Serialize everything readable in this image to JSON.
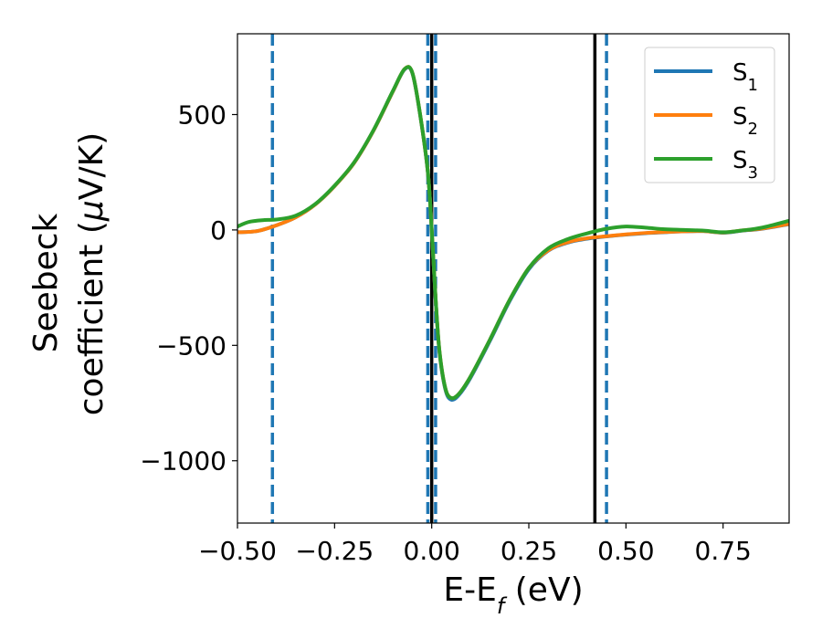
{
  "chart_data": {
    "type": "line",
    "title": "",
    "xlabel": "E-E_f (eV)",
    "ylabel": "Seebeck coefficient (μV/K)",
    "xlabel_parts": {
      "main": "E-E",
      "sub": "f",
      "unit": " (eV)"
    },
    "ylabel_parts": {
      "line1": "Seebeck",
      "line2_prefix": "coefficient  (",
      "mu": "μ",
      "line2_suffix": "V/K)"
    },
    "xlim": [
      -0.5,
      0.92
    ],
    "ylim": [
      -1270,
      850
    ],
    "xticks": [
      -0.5,
      -0.25,
      0.0,
      0.25,
      0.5,
      0.75
    ],
    "xtick_labels": [
      "−0.50",
      "−0.25",
      "0.00",
      "0.25",
      "0.50",
      "0.75"
    ],
    "yticks": [
      500,
      0,
      -500,
      -1000
    ],
    "ytick_labels": [
      "500",
      "0",
      "−500",
      "−1000"
    ],
    "grid": false,
    "legend_position": "upper-right",
    "series": [
      {
        "name": "S1",
        "label_main": "S",
        "label_sub": "1",
        "color": "#1f77b4",
        "points": [
          [
            -0.5,
            -10
          ],
          [
            -0.45,
            -5
          ],
          [
            -0.4,
            20
          ],
          [
            -0.35,
            55
          ],
          [
            -0.3,
            110
          ],
          [
            -0.25,
            190
          ],
          [
            -0.2,
            290
          ],
          [
            -0.15,
            430
          ],
          [
            -0.1,
            600
          ],
          [
            -0.07,
            695
          ],
          [
            -0.05,
            680
          ],
          [
            -0.03,
            500
          ],
          [
            -0.01,
            250
          ],
          [
            0.0,
            0
          ],
          [
            0.01,
            -300
          ],
          [
            0.02,
            -530
          ],
          [
            0.035,
            -690
          ],
          [
            0.05,
            -735
          ],
          [
            0.07,
            -715
          ],
          [
            0.1,
            -640
          ],
          [
            0.15,
            -480
          ],
          [
            0.2,
            -310
          ],
          [
            0.25,
            -170
          ],
          [
            0.3,
            -90
          ],
          [
            0.35,
            -55
          ],
          [
            0.4,
            -38
          ],
          [
            0.45,
            -28
          ],
          [
            0.5,
            -20
          ],
          [
            0.55,
            -14
          ],
          [
            0.6,
            -10
          ],
          [
            0.65,
            -6
          ],
          [
            0.7,
            -5
          ],
          [
            0.75,
            -12
          ],
          [
            0.8,
            -3
          ],
          [
            0.85,
            5
          ],
          [
            0.92,
            25
          ]
        ]
      },
      {
        "name": "S2",
        "label_main": "S",
        "label_sub": "2",
        "color": "#ff7f0e",
        "points": [
          [
            -0.5,
            -10
          ],
          [
            -0.45,
            -5
          ],
          [
            -0.4,
            20
          ],
          [
            -0.35,
            55
          ],
          [
            -0.3,
            110
          ],
          [
            -0.25,
            190
          ],
          [
            -0.2,
            290
          ],
          [
            -0.15,
            430
          ],
          [
            -0.1,
            600
          ],
          [
            -0.07,
            697
          ],
          [
            -0.05,
            682
          ],
          [
            -0.03,
            502
          ],
          [
            -0.01,
            252
          ],
          [
            0.0,
            2
          ],
          [
            0.01,
            -295
          ],
          [
            0.02,
            -525
          ],
          [
            0.035,
            -685
          ],
          [
            0.05,
            -728
          ],
          [
            0.07,
            -710
          ],
          [
            0.1,
            -635
          ],
          [
            0.15,
            -475
          ],
          [
            0.2,
            -305
          ],
          [
            0.25,
            -165
          ],
          [
            0.3,
            -88
          ],
          [
            0.35,
            -53
          ],
          [
            0.4,
            -36
          ],
          [
            0.45,
            -27
          ],
          [
            0.5,
            -19
          ],
          [
            0.55,
            -13
          ],
          [
            0.6,
            -9
          ],
          [
            0.65,
            -6
          ],
          [
            0.7,
            -5
          ],
          [
            0.75,
            -11
          ],
          [
            0.8,
            -2
          ],
          [
            0.85,
            6
          ],
          [
            0.92,
            26
          ]
        ]
      },
      {
        "name": "S3",
        "label_main": "S",
        "label_sub": "3",
        "color": "#2ca02c",
        "points": [
          [
            -0.5,
            15
          ],
          [
            -0.47,
            35
          ],
          [
            -0.43,
            43
          ],
          [
            -0.4,
            45
          ],
          [
            -0.35,
            62
          ],
          [
            -0.3,
            112
          ],
          [
            -0.25,
            192
          ],
          [
            -0.2,
            292
          ],
          [
            -0.15,
            432
          ],
          [
            -0.1,
            602
          ],
          [
            -0.07,
            697
          ],
          [
            -0.05,
            682
          ],
          [
            -0.03,
            502
          ],
          [
            -0.01,
            252
          ],
          [
            0.0,
            2
          ],
          [
            0.01,
            -295
          ],
          [
            0.02,
            -525
          ],
          [
            0.035,
            -685
          ],
          [
            0.05,
            -728
          ],
          [
            0.07,
            -710
          ],
          [
            0.1,
            -635
          ],
          [
            0.15,
            -475
          ],
          [
            0.2,
            -305
          ],
          [
            0.25,
            -165
          ],
          [
            0.3,
            -80
          ],
          [
            0.35,
            -40
          ],
          [
            0.4,
            -15
          ],
          [
            0.45,
            5
          ],
          [
            0.5,
            15
          ],
          [
            0.55,
            10
          ],
          [
            0.6,
            3
          ],
          [
            0.65,
            0
          ],
          [
            0.7,
            -3
          ],
          [
            0.75,
            -10
          ],
          [
            0.8,
            -2
          ],
          [
            0.85,
            10
          ],
          [
            0.92,
            40
          ]
        ]
      }
    ],
    "vlines": [
      {
        "x": -0.41,
        "style": "dashed",
        "color": "#1f77b4"
      },
      {
        "x": -0.01,
        "style": "dashed",
        "color": "#1f77b4"
      },
      {
        "x": 0.01,
        "style": "dashed",
        "color": "#1f77b4"
      },
      {
        "x": 0.0,
        "style": "solid",
        "color": "#000000"
      },
      {
        "x": 0.42,
        "style": "solid",
        "color": "#000000"
      },
      {
        "x": 0.45,
        "style": "dashed",
        "color": "#1f77b4"
      }
    ]
  }
}
